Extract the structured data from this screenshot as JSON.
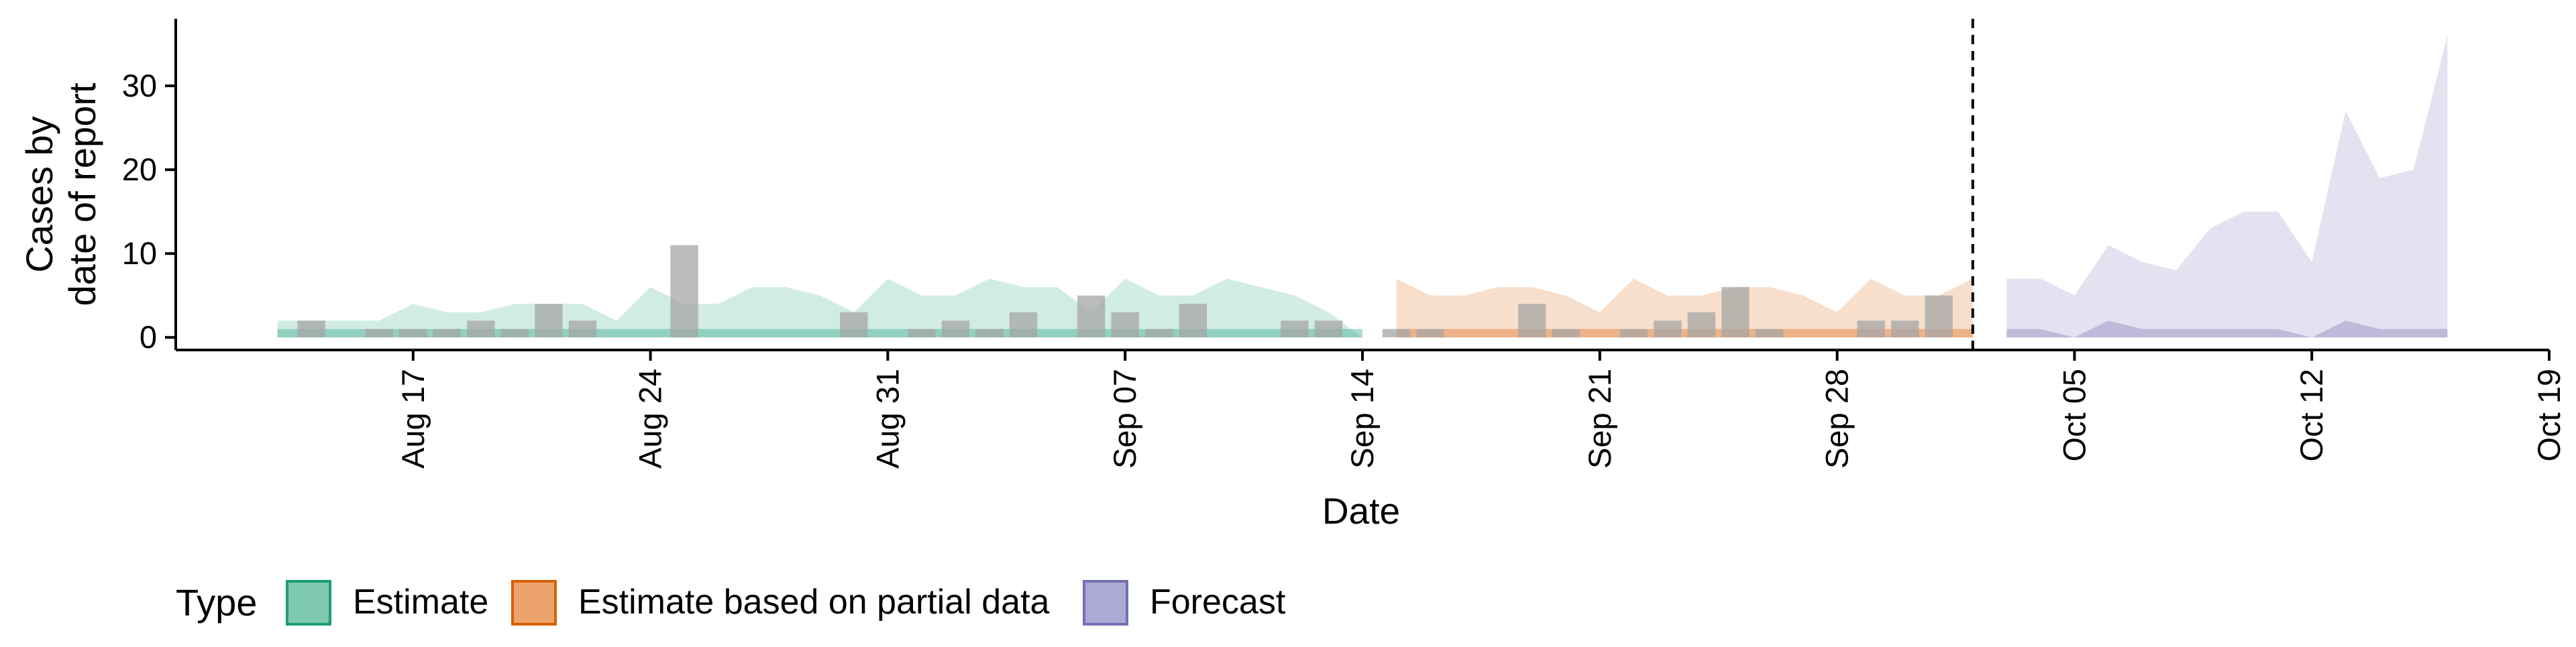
{
  "chart_data": {
    "type": "area",
    "xlabel": "Date",
    "ylabel_lines": [
      "Cases by",
      "date of report"
    ],
    "ylim": [
      -1.5,
      38
    ],
    "y_ticks": [
      0,
      10,
      20,
      30
    ],
    "xlim": [
      "2021-08-10",
      "2021-10-19"
    ],
    "x_ticks": [
      {
        "date": "2021-08-17",
        "label": "Aug 17"
      },
      {
        "date": "2021-08-24",
        "label": "Aug 24"
      },
      {
        "date": "2021-08-31",
        "label": "Aug 31"
      },
      {
        "date": "2021-09-07",
        "label": "Sep 07"
      },
      {
        "date": "2021-09-14",
        "label": "Sep 14"
      },
      {
        "date": "2021-09-21",
        "label": "Sep 21"
      },
      {
        "date": "2021-09-28",
        "label": "Sep 28"
      },
      {
        "date": "2021-10-05",
        "label": "Oct 05"
      },
      {
        "date": "2021-10-12",
        "label": "Oct 12"
      },
      {
        "date": "2021-10-19",
        "label": "Oct 19"
      }
    ],
    "forecast_start": "2021-10-02",
    "reported_cases": [
      {
        "date": "2021-08-14",
        "value": 2
      },
      {
        "date": "2021-08-16",
        "value": 1
      },
      {
        "date": "2021-08-17",
        "value": 1
      },
      {
        "date": "2021-08-18",
        "value": 1
      },
      {
        "date": "2021-08-19",
        "value": 2
      },
      {
        "date": "2021-08-20",
        "value": 1
      },
      {
        "date": "2021-08-21",
        "value": 4
      },
      {
        "date": "2021-08-22",
        "value": 2
      },
      {
        "date": "2021-08-25",
        "value": 11
      },
      {
        "date": "2021-08-30",
        "value": 3
      },
      {
        "date": "2021-09-01",
        "value": 1
      },
      {
        "date": "2021-09-02",
        "value": 2
      },
      {
        "date": "2021-09-03",
        "value": 1
      },
      {
        "date": "2021-09-04",
        "value": 3
      },
      {
        "date": "2021-09-06",
        "value": 5
      },
      {
        "date": "2021-09-07",
        "value": 3
      },
      {
        "date": "2021-09-08",
        "value": 1
      },
      {
        "date": "2021-09-09",
        "value": 4
      },
      {
        "date": "2021-09-12",
        "value": 2
      },
      {
        "date": "2021-09-13",
        "value": 2
      },
      {
        "date": "2021-09-15",
        "value": 1
      },
      {
        "date": "2021-09-16",
        "value": 1
      },
      {
        "date": "2021-09-19",
        "value": 4
      },
      {
        "date": "2021-09-20",
        "value": 1
      },
      {
        "date": "2021-09-22",
        "value": 1
      },
      {
        "date": "2021-09-23",
        "value": 2
      },
      {
        "date": "2021-09-24",
        "value": 3
      },
      {
        "date": "2021-09-25",
        "value": 6
      },
      {
        "date": "2021-09-26",
        "value": 1
      },
      {
        "date": "2021-09-29",
        "value": 2
      },
      {
        "date": "2021-09-30",
        "value": 2
      },
      {
        "date": "2021-10-01",
        "value": 5
      }
    ],
    "series": [
      {
        "name": "Estimate",
        "color": "#1b9e77",
        "dates": [
          "2021-08-13",
          "2021-08-14",
          "2021-08-15",
          "2021-08-16",
          "2021-08-17",
          "2021-08-18",
          "2021-08-19",
          "2021-08-20",
          "2021-08-21",
          "2021-08-22",
          "2021-08-23",
          "2021-08-24",
          "2021-08-25",
          "2021-08-26",
          "2021-08-27",
          "2021-08-28",
          "2021-08-29",
          "2021-08-30",
          "2021-08-31",
          "2021-09-01",
          "2021-09-02",
          "2021-09-03",
          "2021-09-04",
          "2021-09-05",
          "2021-09-06",
          "2021-09-07",
          "2021-09-08",
          "2021-09-09",
          "2021-09-10",
          "2021-09-11",
          "2021-09-12",
          "2021-09-13",
          "2021-09-14"
        ],
        "upper": [
          2,
          2,
          2,
          2,
          4,
          3,
          3,
          4,
          4,
          4,
          2,
          6,
          4,
          4,
          6,
          6,
          5,
          3,
          7,
          5,
          5,
          7,
          6,
          6,
          3,
          7,
          5,
          5,
          7,
          6,
          5,
          3,
          0
        ],
        "lower": [
          0,
          0,
          0,
          0,
          0,
          0,
          0,
          0,
          0,
          0,
          0,
          0,
          0,
          0,
          0,
          0,
          0,
          0,
          0,
          0,
          0,
          0,
          0,
          0,
          0,
          0,
          0,
          0,
          0,
          0,
          0,
          0,
          0
        ],
        "median": [
          1,
          1,
          1,
          1,
          1,
          1,
          1,
          1,
          1,
          1,
          1,
          1,
          1,
          1,
          1,
          1,
          1,
          1,
          1,
          1,
          1,
          1,
          1,
          1,
          1,
          1,
          1,
          1,
          1,
          1,
          1,
          1,
          1
        ]
      },
      {
        "name": "Estimate based on partial data",
        "color": "#d95f02",
        "dates": [
          "2021-09-15",
          "2021-09-16",
          "2021-09-17",
          "2021-09-18",
          "2021-09-19",
          "2021-09-20",
          "2021-09-21",
          "2021-09-22",
          "2021-09-23",
          "2021-09-24",
          "2021-09-25",
          "2021-09-26",
          "2021-09-27",
          "2021-09-28",
          "2021-09-29",
          "2021-09-30",
          "2021-10-01",
          "2021-10-02"
        ],
        "upper": [
          7,
          5,
          5,
          6,
          6,
          5,
          3,
          7,
          5,
          5,
          6,
          6,
          5,
          3,
          7,
          5,
          5,
          7
        ],
        "lower": [
          0,
          0,
          0,
          0,
          0,
          0,
          0,
          0,
          0,
          0,
          0,
          0,
          0,
          0,
          0,
          0,
          0,
          0
        ],
        "median": [
          1,
          1,
          1,
          1,
          1,
          1,
          1,
          1,
          1,
          1,
          1,
          1,
          1,
          1,
          1,
          1,
          1,
          1
        ]
      },
      {
        "name": "Forecast",
        "color": "#7570b3",
        "dates": [
          "2021-10-03",
          "2021-10-04",
          "2021-10-05",
          "2021-10-06",
          "2021-10-07",
          "2021-10-08",
          "2021-10-09",
          "2021-10-10",
          "2021-10-11",
          "2021-10-12",
          "2021-10-13",
          "2021-10-14",
          "2021-10-15",
          "2021-10-16"
        ],
        "upper": [
          7,
          7,
          5,
          11,
          9,
          8,
          13,
          15,
          15,
          9,
          27,
          19,
          20,
          36
        ],
        "lower": [
          0,
          0,
          0,
          0,
          0,
          0,
          0,
          0,
          0,
          0,
          0,
          0,
          0,
          0
        ],
        "median": [
          1,
          1,
          0,
          2,
          1,
          1,
          1,
          1,
          1,
          0,
          2,
          1,
          1,
          1
        ]
      }
    ],
    "legend": {
      "title": "Type",
      "position": "bottom",
      "items": [
        {
          "label": "Estimate",
          "fill": "#7fc8b2",
          "border": "#1b9e77"
        },
        {
          "label": "Estimate based on partial data",
          "fill": "#eca46c",
          "border": "#d95f02"
        },
        {
          "label": "Forecast",
          "fill": "#acaad4",
          "border": "#7570b3"
        }
      ]
    },
    "colors": {
      "reported_bar": "#a6a6a6",
      "axis": "#000000",
      "divider": "#000000"
    }
  }
}
